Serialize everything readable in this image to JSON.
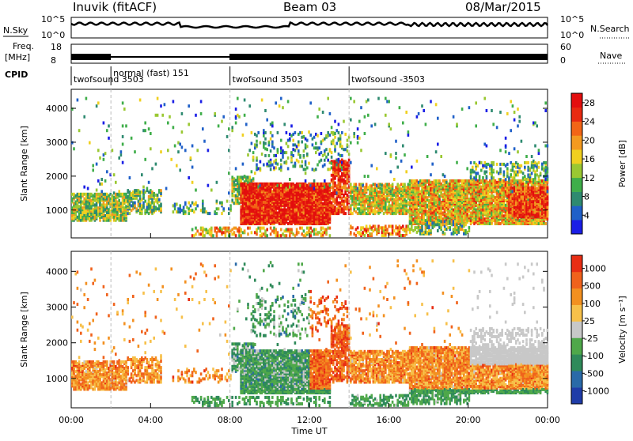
{
  "header": {
    "station": "Inuvik (fitACF)",
    "beam": "Beam 03",
    "date": "08/Mar/2015"
  },
  "strips": {
    "nsky_label": "N.Sky",
    "nsky_ticks": [
      "10^5",
      "10^0"
    ],
    "nsearch_ticks": [
      "10^5",
      "10^0"
    ],
    "nsearch_label": "N.Search",
    "freq_label_1": "Freq.",
    "freq_label_2": "[MHz]",
    "freq_ticks": [
      "18",
      "8"
    ],
    "nave_ticks": [
      "60",
      "0"
    ],
    "nave_label": "Nave",
    "cpid_label": "CPID"
  },
  "cpid_segments": [
    {
      "label": "twofsound 3503",
      "start_h": 0.0
    },
    {
      "label": "normal (fast) 151",
      "start_h": 2.0
    },
    {
      "label": "twofsound 3503",
      "start_h": 8.0
    },
    {
      "label": "twofsound -3503",
      "start_h": 14.0
    }
  ],
  "chart_data": [
    {
      "type": "heatmap",
      "ylabel": "Slant Range [km]",
      "xlabel": "Time UT",
      "x_ticks": [
        "00:00",
        "04:00",
        "08:00",
        "12:00",
        "16:00",
        "20:00",
        "00:00"
      ],
      "y_ticks": [
        "1000",
        "2000",
        "3000",
        "4000"
      ],
      "xlim_hours": [
        0,
        24
      ],
      "ylim_km": [
        180,
        4560
      ],
      "colorbar": {
        "label": "Power [dB]",
        "ticks": [
          "4",
          "8",
          "12",
          "16",
          "20",
          "24",
          "28"
        ],
        "range": [
          0,
          30
        ],
        "colors": [
          "#1a1ee6",
          "#2060c8",
          "#2e8a70",
          "#3fae4a",
          "#9ac832",
          "#f0d020",
          "#f39a20",
          "#f26516",
          "#e82a10",
          "#e30e0e"
        ]
      }
    },
    {
      "type": "heatmap",
      "ylabel": "Slant Range [km]",
      "xlabel": "Time UT",
      "x_ticks": [
        "00:00",
        "04:00",
        "08:00",
        "12:00",
        "16:00",
        "20:00",
        "00:00"
      ],
      "y_ticks": [
        "1000",
        "2000",
        "3000",
        "4000"
      ],
      "xlim_hours": [
        0,
        24
      ],
      "ylim_km": [
        180,
        4560
      ],
      "colorbar": {
        "label": "Velocity [m s⁻¹]",
        "ticks": [
          "1000",
          "500",
          "100",
          "25",
          "-25",
          "-100",
          "-500",
          "-1000"
        ],
        "colors": [
          "#1f3ca8",
          "#2a6aa8",
          "#2f8a5a",
          "#4fa84a",
          "#c8c8c8",
          "#f7c04a",
          "#f39020",
          "#f0621c",
          "#e82e14"
        ]
      }
    }
  ]
}
